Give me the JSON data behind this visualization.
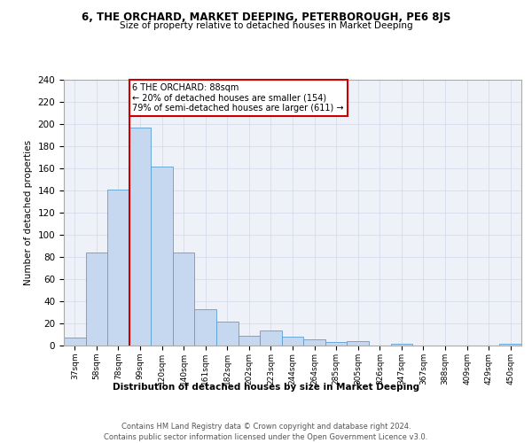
{
  "title": "6, THE ORCHARD, MARKET DEEPING, PETERBOROUGH, PE6 8JS",
  "subtitle": "Size of property relative to detached houses in Market Deeping",
  "xlabel": "Distribution of detached houses by size in Market Deeping",
  "ylabel": "Number of detached properties",
  "footer_line1": "Contains HM Land Registry data © Crown copyright and database right 2024.",
  "footer_line2": "Contains public sector information licensed under the Open Government Licence v3.0.",
  "categories": [
    "37sqm",
    "58sqm",
    "78sqm",
    "99sqm",
    "120sqm",
    "140sqm",
    "161sqm",
    "182sqm",
    "202sqm",
    "223sqm",
    "244sqm",
    "264sqm",
    "285sqm",
    "305sqm",
    "326sqm",
    "347sqm",
    "367sqm",
    "388sqm",
    "409sqm",
    "429sqm",
    "450sqm"
  ],
  "values": [
    7,
    84,
    141,
    197,
    162,
    84,
    33,
    22,
    9,
    14,
    8,
    6,
    3,
    4,
    0,
    2,
    0,
    0,
    0,
    0,
    2
  ],
  "bar_color": "#c5d8f0",
  "bar_edge_color": "#5a9fd4",
  "grid_color": "#d0d8e8",
  "background_color": "#eef2f8",
  "vline_color": "#cc0000",
  "annotation_text": "6 THE ORCHARD: 88sqm\n← 20% of detached houses are smaller (154)\n79% of semi-detached houses are larger (611) →",
  "annotation_box_color": "#cc0000",
  "ylim": [
    0,
    240
  ],
  "yticks": [
    0,
    20,
    40,
    60,
    80,
    100,
    120,
    140,
    160,
    180,
    200,
    220,
    240
  ]
}
